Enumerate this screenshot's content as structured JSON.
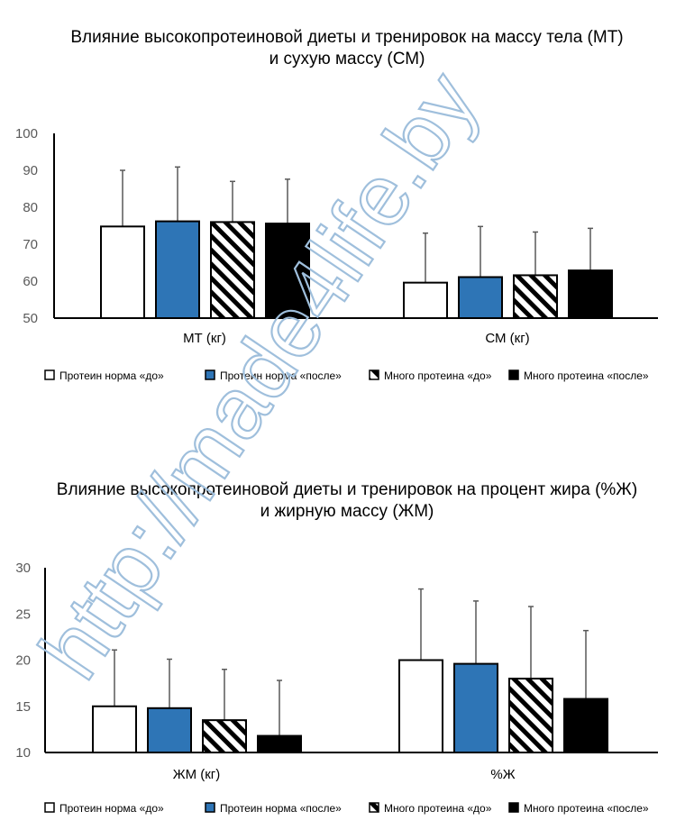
{
  "watermark": "http://made4life.by",
  "colors": {
    "white_bar": "#ffffff",
    "blue_bar": "#2e75b6",
    "black_bar": "#000000",
    "error": "#595959"
  },
  "legend": [
    "Протеин норма «до»",
    "Протеин норма «после»",
    "Много протеина «до»",
    "Много протеина «после»"
  ],
  "chart_data": [
    {
      "type": "bar",
      "title": [
        "Влияние высокопротеиновой диеты и тренировок на массу тела (МТ)",
        "и сухую массу (СМ)"
      ],
      "categories": [
        "МТ (кг)",
        "СМ (кг)"
      ],
      "ylim": [
        50,
        100
      ],
      "yticks": [
        "50",
        "60",
        "70",
        "80",
        "90",
        "100"
      ],
      "legend_position": "bottom",
      "series": [
        {
          "name": "Протеин норма «до»",
          "style": "white",
          "values": [
            74.8,
            59.6
          ],
          "error_top": [
            90.0,
            73.0
          ]
        },
        {
          "name": "Протеин норма «после»",
          "style": "blue",
          "values": [
            76.2,
            61.1
          ],
          "error_top": [
            90.9,
            74.8
          ]
        },
        {
          "name": "Много протеина «до»",
          "style": "hatch",
          "values": [
            76.0,
            61.6
          ],
          "error_top": [
            87.0,
            73.3
          ]
        },
        {
          "name": "Много протеина «после»",
          "style": "black",
          "values": [
            75.6,
            62.9
          ],
          "error_top": [
            87.6,
            74.3
          ]
        }
      ]
    },
    {
      "type": "bar",
      "title": [
        "Влияние высокопротеиновой диеты и тренировок на процент жира (%Ж)",
        "и жирную массу (ЖМ)"
      ],
      "categories": [
        "ЖМ (кг)",
        "%Ж"
      ],
      "ylim": [
        10,
        30
      ],
      "yticks": [
        "10",
        "15",
        "20",
        "25",
        "30"
      ],
      "legend_position": "bottom",
      "series": [
        {
          "name": "Протеин норма «до»",
          "style": "white",
          "values": [
            15.0,
            20.0
          ],
          "error_top": [
            21.1,
            27.7
          ]
        },
        {
          "name": "Протеин норма «после»",
          "style": "blue",
          "values": [
            14.8,
            19.6
          ],
          "error_top": [
            20.1,
            26.4
          ]
        },
        {
          "name": "Много протеина «до»",
          "style": "hatch",
          "values": [
            13.5,
            18.0
          ],
          "error_top": [
            19.0,
            25.8
          ]
        },
        {
          "name": "Много протеина «после»",
          "style": "black",
          "values": [
            11.8,
            15.8
          ],
          "error_top": [
            17.8,
            23.2
          ]
        }
      ]
    }
  ]
}
